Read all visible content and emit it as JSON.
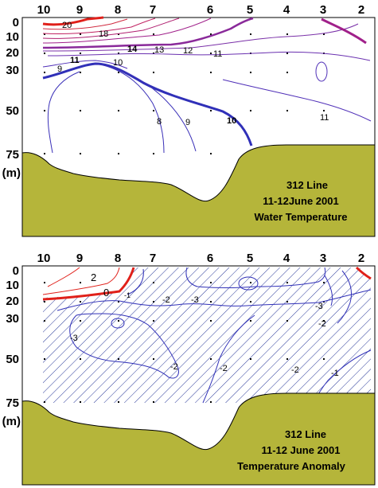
{
  "station_labels": [
    "10",
    "9",
    "8",
    "7",
    "6",
    "5",
    "4",
    "3",
    "2"
  ],
  "depth_labels": [
    "0",
    "10",
    "20",
    "30",
    "50",
    "75"
  ],
  "depth_unit": "(m)",
  "colors": {
    "seafloor": "#b5b53a",
    "warm_contour": "#e0201a",
    "transition_contour": "#a0208a",
    "cool_contour": "#3030b8",
    "hatch": "#2a3a9a"
  },
  "panels": [
    {
      "line": "312 Line",
      "dates": "11-12June 2001",
      "parameter": "Water Temperature",
      "contour_labels": [
        "20",
        "18",
        "14",
        "13",
        "12",
        "11",
        "11",
        "10",
        "9",
        "9",
        "8",
        "10",
        "11"
      ]
    },
    {
      "line": "312 Line",
      "dates": "11-12 June 2001",
      "parameter": "Temperature Anomaly",
      "contour_labels": [
        "2",
        "0",
        "-1",
        "-2",
        "-3",
        "-3",
        "-2",
        "-3",
        "-2",
        "-2",
        "-2",
        "-1"
      ]
    }
  ]
}
